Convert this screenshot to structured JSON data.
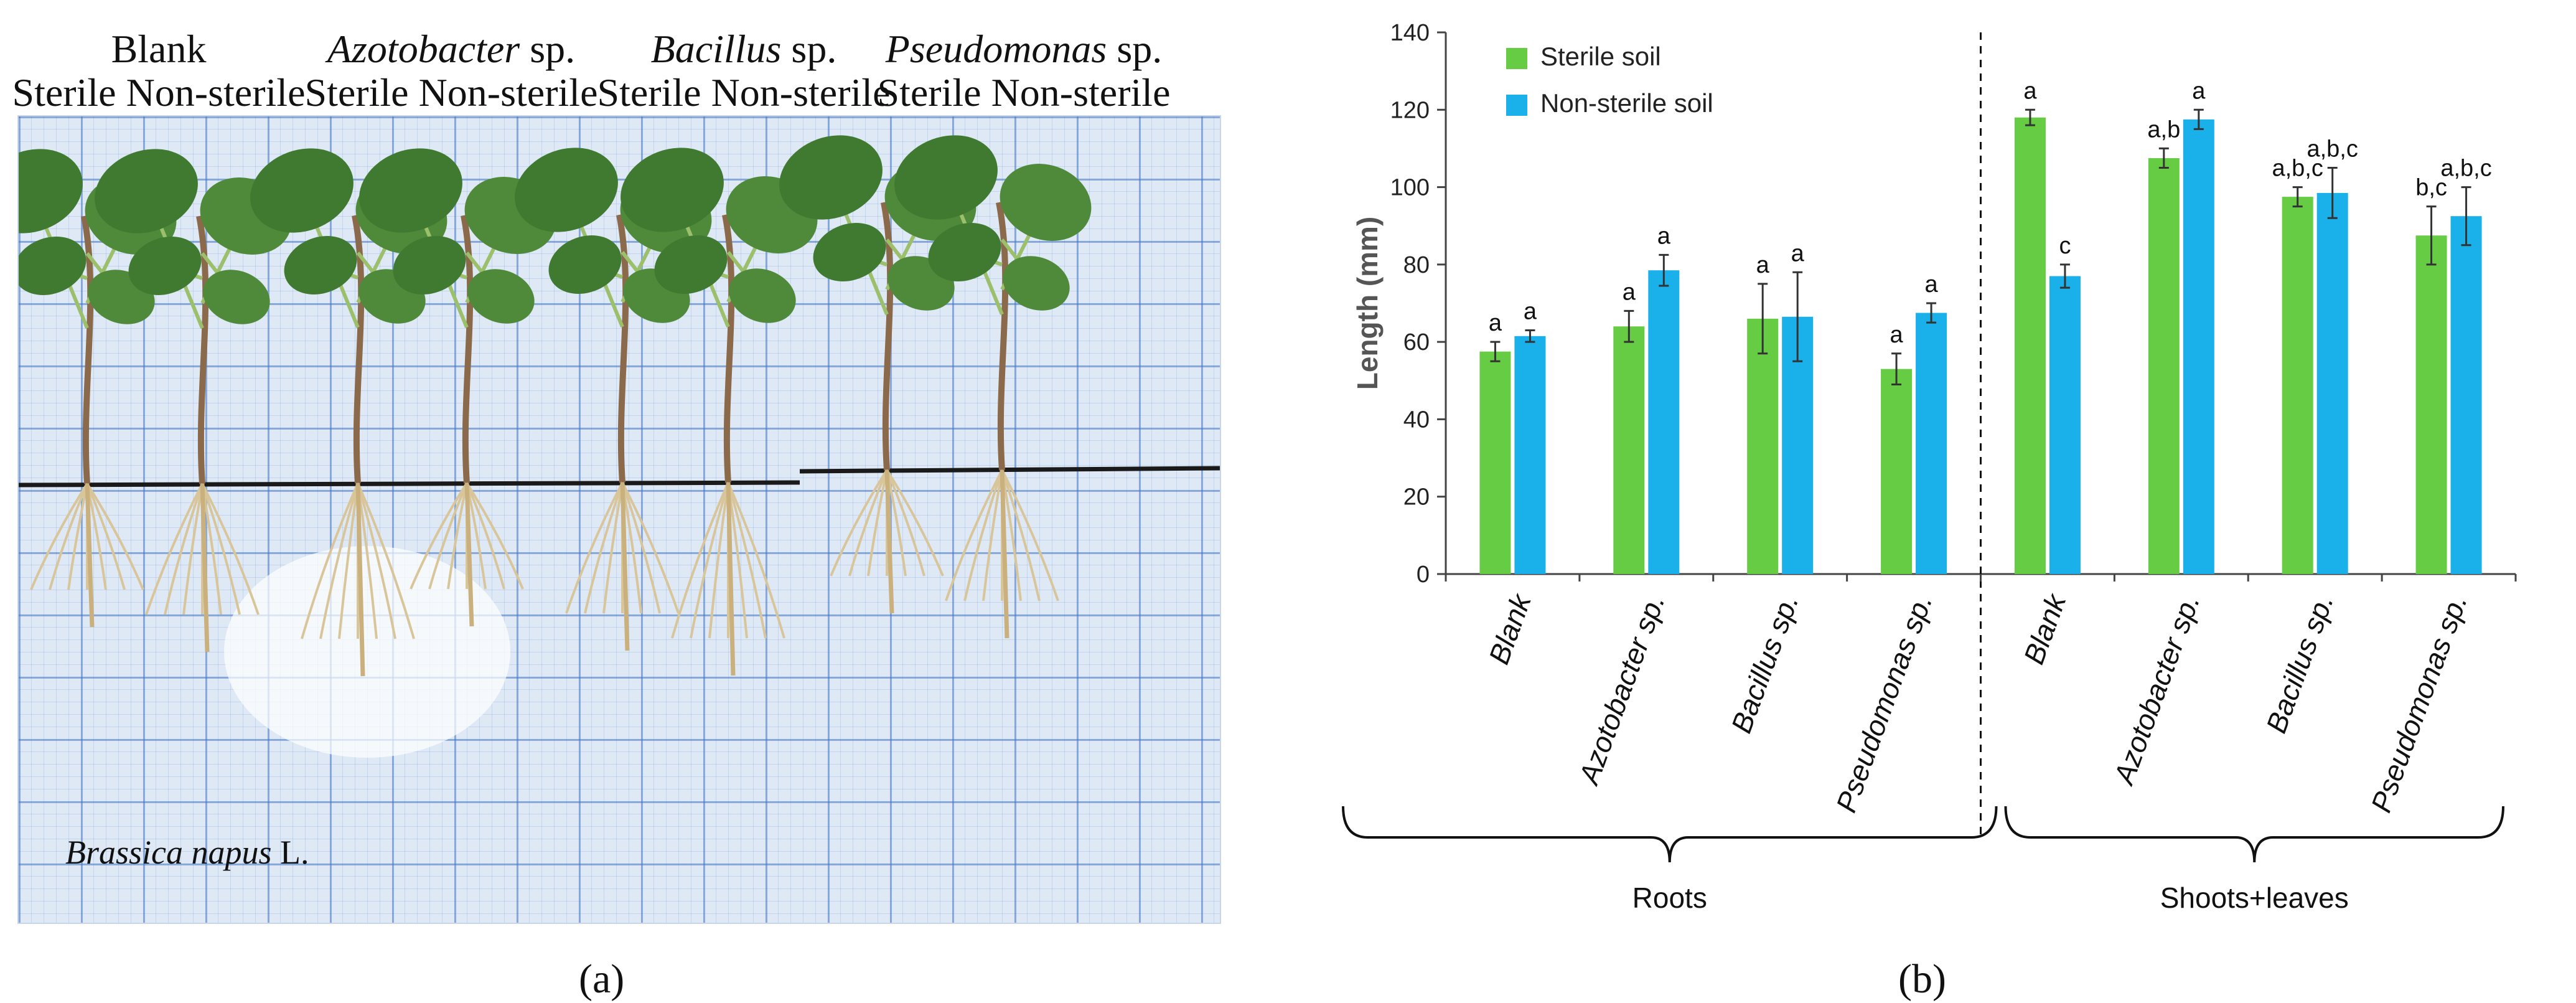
{
  "panel_a": {
    "label": "(a)",
    "groups": [
      {
        "name": "Blank",
        "italic": false,
        "suffix": "",
        "sterile": "Sterile",
        "non_sterile": "Non-sterile"
      },
      {
        "name": "Azotobacter",
        "italic": true,
        "suffix": " sp.",
        "sterile": "Sterile",
        "non_sterile": "Non-sterile"
      },
      {
        "name": "Bacillus",
        "italic": true,
        "suffix": " sp.",
        "sterile": "Sterile",
        "non_sterile": "Non-sterile"
      },
      {
        "name": "Pseudomonas",
        "italic": true,
        "suffix": " sp.",
        "sterile": "Sterile",
        "non_sterile": "Non-sterile"
      }
    ],
    "caption_species": "Brassica napus",
    "caption_suffix": " L."
  },
  "panel_b": {
    "label": "(b)"
  },
  "colors": {
    "sterile": "#66cc44",
    "non_sterile": "#1ab0ea",
    "axis": "#444444"
  },
  "chart_data": {
    "type": "bar",
    "ylabel": "Length  (mm)",
    "ylim": [
      0,
      140
    ],
    "yticks": [
      0,
      20,
      40,
      60,
      80,
      100,
      120,
      140
    ],
    "grid": false,
    "legend_position": "top-left",
    "categories": [
      "Blank",
      "Azotobacter sp.",
      "Bacillus sp.",
      "Pseudomonas sp.",
      "Blank",
      "Azotobacter sp.",
      "Bacillus sp.",
      "Pseudomonas sp."
    ],
    "groups": [
      {
        "label": "Roots",
        "categories": [
          0,
          1,
          2,
          3
        ]
      },
      {
        "label": "Shoots+leaves",
        "categories": [
          4,
          5,
          6,
          7
        ]
      }
    ],
    "series": [
      {
        "name": "Sterile soil",
        "values": [
          57.5,
          64,
          66,
          53,
          118,
          107.5,
          97.5,
          87.5
        ],
        "errors": [
          2.5,
          4,
          9,
          4,
          2,
          2.5,
          2.5,
          7.5
        ],
        "letters": [
          "a",
          "a",
          "a",
          "a",
          "a",
          "a,b",
          "a,b,c",
          "b,c"
        ]
      },
      {
        "name": "Non-sterile soil",
        "values": [
          61.5,
          78.5,
          66.5,
          67.5,
          77,
          117.5,
          98.5,
          92.5
        ],
        "errors": [
          1.5,
          4,
          11.5,
          2.5,
          3,
          2.5,
          6.5,
          7.5
        ],
        "letters": [
          "a",
          "a",
          "a",
          "a",
          "c",
          "a",
          "a,b,c",
          "a,b,c"
        ]
      }
    ]
  }
}
